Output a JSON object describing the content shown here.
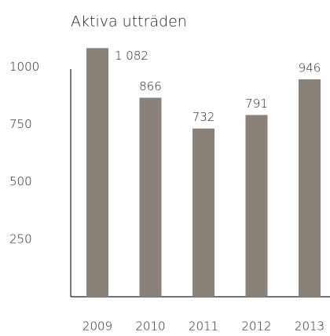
{
  "chart_data": {
    "type": "bar",
    "title": "Aktiva utträden",
    "categories": [
      "2009",
      "2010",
      "2011",
      "2012",
      "2013"
    ],
    "values": [
      1082,
      866,
      732,
      791,
      946
    ],
    "value_labels": [
      "1 082",
      "866",
      "732",
      "791",
      "946"
    ],
    "color": "#8a8278",
    "ylim": [
      0,
      1100
    ],
    "yticks": [
      250,
      500,
      750,
      1000
    ],
    "grid": false
  }
}
